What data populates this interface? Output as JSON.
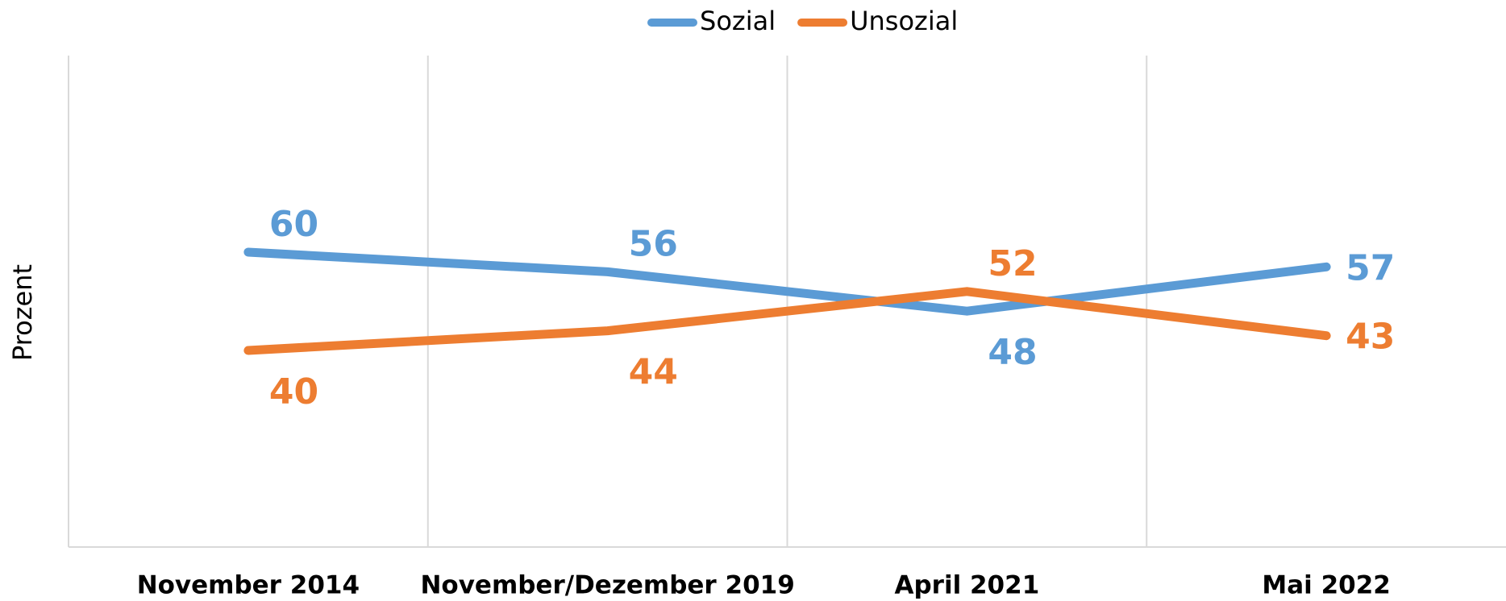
{
  "chart_data": {
    "type": "line",
    "categories": [
      "November 2014",
      "November/Dezember 2019",
      "April 2021",
      "Mai 2022"
    ],
    "series": [
      {
        "name": "Sozial",
        "color": "#5b9bd5",
        "values": [
          60,
          56,
          48,
          57
        ]
      },
      {
        "name": "Unsozial",
        "color": "#ed7d31",
        "values": [
          40,
          44,
          52,
          43
        ]
      }
    ],
    "y_label": "Prozent",
    "ylim": [
      0,
      100
    ],
    "legend": "top"
  }
}
